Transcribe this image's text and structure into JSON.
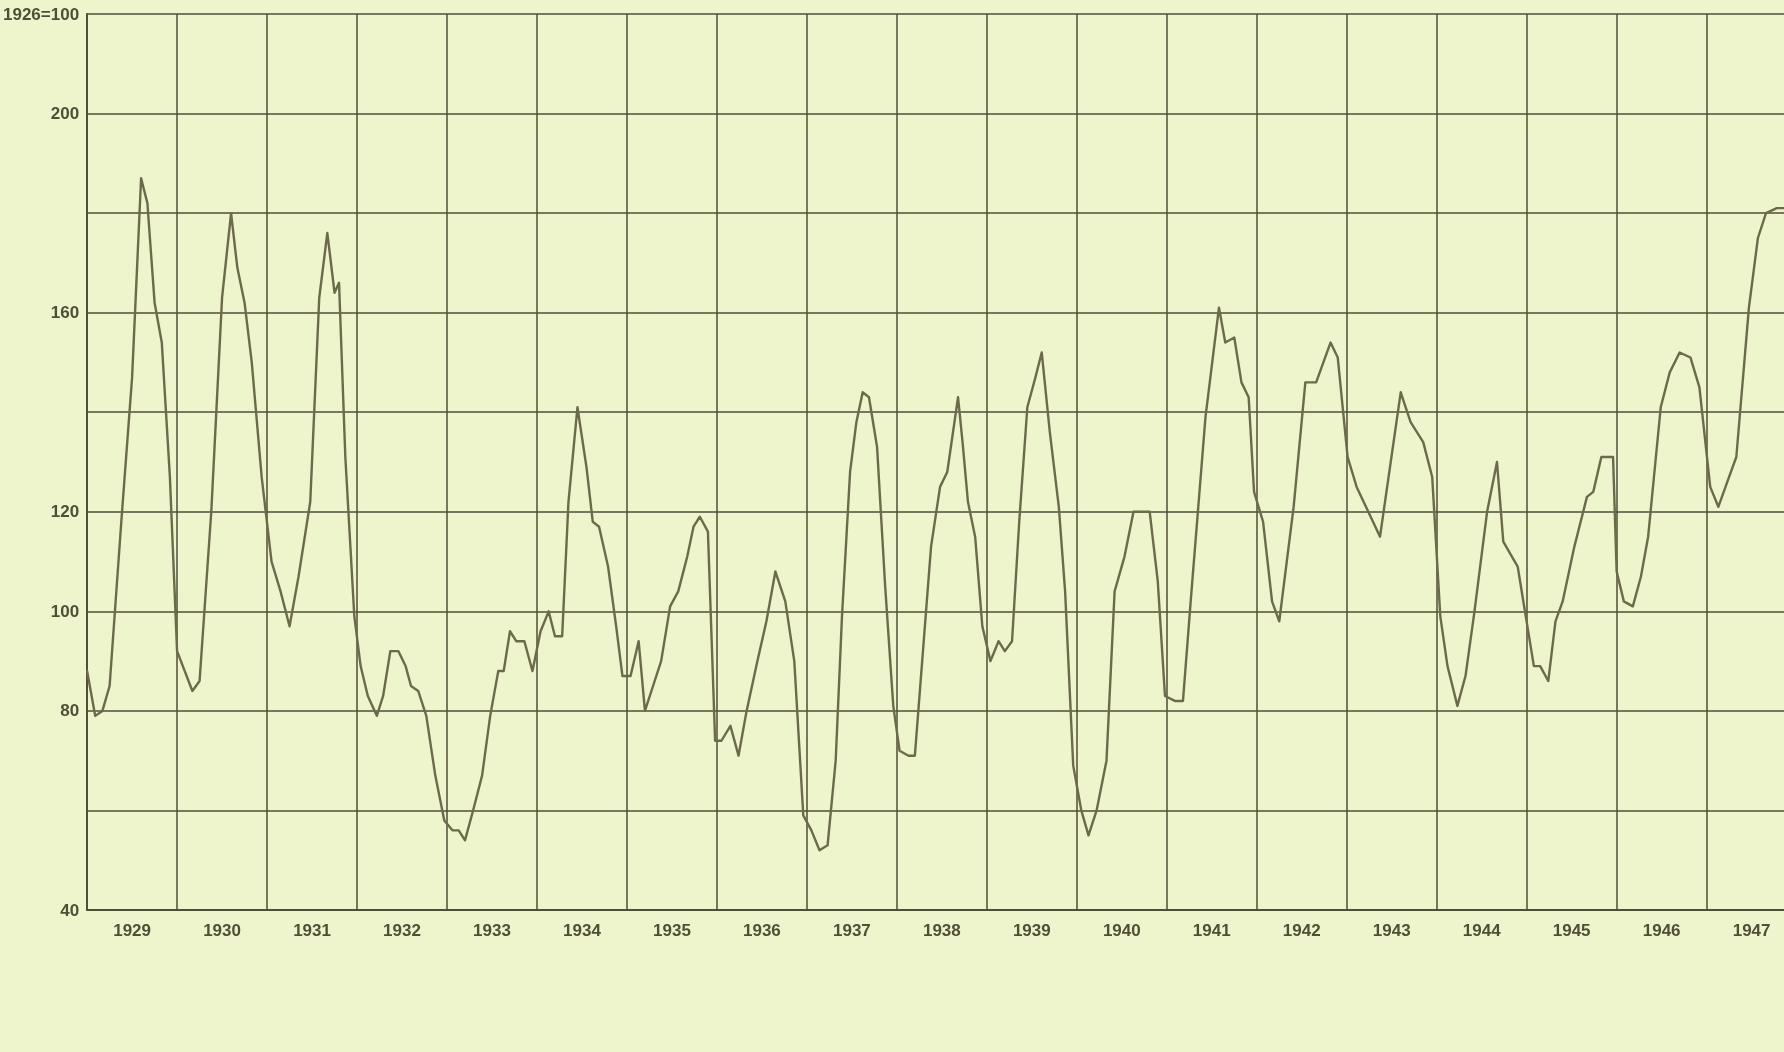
{
  "chart_data": {
    "type": "line",
    "marker": "none",
    "line_style": "solid",
    "grid": true,
    "xlim": [
      1929,
      1947.86
    ],
    "ylim": [
      40,
      220
    ],
    "yticks": [
      40,
      {
        "value": 60,
        "label": null
      },
      80,
      100,
      120,
      {
        "value": 140,
        "label": null
      },
      160,
      {
        "value": 180,
        "label": null
      },
      200,
      {
        "value": 220,
        "label": "1926=100"
      }
    ],
    "xticks": [
      {
        "value": 1929,
        "label": null
      },
      {
        "value": 1929.5,
        "label": "1929"
      },
      {
        "value": 1930,
        "label": null
      },
      {
        "value": 1930.5,
        "label": "1930"
      },
      {
        "value": 1931,
        "label": null
      },
      {
        "value": 1931.5,
        "label": "1931"
      },
      {
        "value": 1932,
        "label": null
      },
      {
        "value": 1932.5,
        "label": "1932"
      },
      {
        "value": 1933,
        "label": null
      },
      {
        "value": 1933.5,
        "label": "1933"
      },
      {
        "value": 1934,
        "label": null
      },
      {
        "value": 1934.5,
        "label": "1934"
      },
      {
        "value": 1935,
        "label": null
      },
      {
        "value": 1935.5,
        "label": "1935"
      },
      {
        "value": 1936,
        "label": null
      },
      {
        "value": 1936.5,
        "label": "1936"
      },
      {
        "value": 1937,
        "label": null
      },
      {
        "value": 1937.5,
        "label": "1937"
      },
      {
        "value": 1938,
        "label": null
      },
      {
        "value": 1938.5,
        "label": "1938"
      },
      {
        "value": 1939,
        "label": null
      },
      {
        "value": 1939.5,
        "label": "1939"
      },
      {
        "value": 1940,
        "label": null
      },
      {
        "value": 1940.5,
        "label": "1940"
      },
      {
        "value": 1941,
        "label": null
      },
      {
        "value": 1941.5,
        "label": "1941"
      },
      {
        "value": 1942,
        "label": null
      },
      {
        "value": 1942.5,
        "label": "1942"
      },
      {
        "value": 1943,
        "label": null
      },
      {
        "value": 1943.5,
        "label": "1943"
      },
      {
        "value": 1944,
        "label": null
      },
      {
        "value": 1944.5,
        "label": "1944"
      },
      {
        "value": 1945,
        "label": null
      },
      {
        "value": 1945.5,
        "label": "1945"
      },
      {
        "value": 1946,
        "label": null
      },
      {
        "value": 1946.5,
        "label": "1946"
      },
      {
        "value": 1947,
        "label": null
      },
      {
        "value": 1947.5,
        "label": "1947"
      }
    ],
    "series": [
      {
        "color": "#6b6b4c",
        "x": [
          1929.0,
          1929.09,
          1929.17,
          1929.25,
          1929.38,
          1929.5,
          1929.6,
          1929.67,
          1929.75,
          1929.83,
          1929.92,
          1930.0,
          1930.17,
          1930.25,
          1930.38,
          1930.5,
          1930.6,
          1930.67,
          1930.75,
          1930.83,
          1930.94,
          1931.05,
          1931.15,
          1931.25,
          1931.35,
          1931.48,
          1931.58,
          1931.67,
          1931.75,
          1931.8,
          1931.87,
          1931.97,
          1932.04,
          1932.12,
          1932.22,
          1932.29,
          1932.37,
          1932.46,
          1932.54,
          1932.6,
          1932.68,
          1932.77,
          1932.87,
          1932.97,
          1933.06,
          1933.13,
          1933.2,
          1933.29,
          1933.39,
          1933.48,
          1933.57,
          1933.63,
          1933.7,
          1933.77,
          1933.86,
          1933.95,
          1934.04,
          1934.13,
          1934.2,
          1934.28,
          1934.35,
          1934.45,
          1934.55,
          1934.62,
          1934.69,
          1934.79,
          1934.88,
          1934.95,
          1935.04,
          1935.13,
          1935.2,
          1935.29,
          1935.38,
          1935.48,
          1935.57,
          1935.67,
          1935.74,
          1935.81,
          1935.9,
          1935.98,
          1936.05,
          1936.15,
          1936.24,
          1936.33,
          1936.45,
          1936.55,
          1936.65,
          1936.76,
          1936.86,
          1936.96,
          1937.05,
          1937.14,
          1937.23,
          1937.32,
          1937.39,
          1937.48,
          1937.55,
          1937.62,
          1937.69,
          1937.78,
          1937.87,
          1937.96,
          1938.03,
          1938.13,
          1938.2,
          1938.29,
          1938.38,
          1938.48,
          1938.56,
          1938.68,
          1938.73,
          1938.79,
          1938.87,
          1938.95,
          1939.04,
          1939.13,
          1939.2,
          1939.28,
          1939.36,
          1939.45,
          1939.54,
          1939.61,
          1939.7,
          1939.8,
          1939.87,
          1939.96,
          1940.05,
          1940.13,
          1940.22,
          1940.33,
          1940.42,
          1940.53,
          1940.63,
          1940.72,
          1940.81,
          1940.9,
          1940.98,
          1941.09,
          1941.18,
          1941.27,
          1941.43,
          1941.58,
          1941.65,
          1941.75,
          1941.83,
          1941.91,
          1941.97,
          1942.07,
          1942.17,
          1942.25,
          1942.41,
          1942.54,
          1942.66,
          1942.82,
          1942.9,
          1943.01,
          1943.11,
          1943.37,
          1943.6,
          1943.71,
          1943.85,
          1943.95,
          1944.04,
          1944.12,
          1944.23,
          1944.32,
          1944.42,
          1944.56,
          1944.67,
          1944.74,
          1944.9,
          1945.08,
          1945.15,
          1945.24,
          1945.32,
          1945.4,
          1945.53,
          1945.67,
          1945.74,
          1945.83,
          1945.96,
          1946.0,
          1946.08,
          1946.18,
          1946.27,
          1946.35,
          1946.49,
          1946.59,
          1946.7,
          1946.82,
          1946.92,
          1947.04,
          1947.13,
          1947.25,
          1947.33,
          1947.47,
          1947.57,
          1947.66,
          1947.78,
          1947.86
        ],
        "values": [
          88,
          79,
          80,
          85,
          118,
          147,
          187,
          182,
          162,
          154,
          127,
          92,
          84,
          86,
          120,
          163,
          180,
          169,
          162,
          150,
          127,
          110,
          104,
          97,
          107,
          122,
          163,
          176,
          164,
          166,
          131,
          99,
          89,
          83,
          79,
          83,
          92,
          92,
          89,
          85,
          84,
          79,
          67,
          58,
          56,
          56,
          54,
          60,
          67,
          79,
          88,
          88,
          96,
          94,
          94,
          88,
          96,
          100,
          95,
          95,
          122,
          141,
          129,
          118,
          117,
          109,
          97,
          87,
          87,
          94,
          80,
          85,
          90,
          101,
          104,
          111,
          117,
          119,
          116,
          74,
          74,
          77,
          71,
          80,
          90,
          98,
          108,
          102,
          90,
          59,
          56,
          52,
          53,
          70,
          99,
          128,
          138,
          144,
          143,
          133,
          105,
          81,
          72,
          71,
          71,
          92,
          113,
          125,
          128,
          143,
          134,
          122,
          115,
          97,
          90,
          94,
          92,
          94,
          118,
          141,
          147,
          152,
          136,
          121,
          104,
          69,
          60,
          55,
          60,
          70,
          104,
          111,
          120,
          120,
          120,
          106,
          83,
          82,
          82,
          103,
          139,
          161,
          154,
          155,
          146,
          143,
          124,
          118,
          102,
          98,
          121,
          146,
          146,
          154,
          151,
          131,
          125,
          115,
          144,
          138,
          134,
          127,
          99,
          89,
          81,
          87,
          100,
          120,
          130,
          114,
          109,
          89,
          89,
          86,
          98,
          102,
          113,
          123,
          124,
          131,
          131,
          108,
          102,
          101,
          107,
          115,
          141,
          148,
          152,
          151,
          145,
          125,
          121,
          127,
          131,
          161,
          175,
          180,
          181,
          181
        ]
      }
    ]
  }
}
